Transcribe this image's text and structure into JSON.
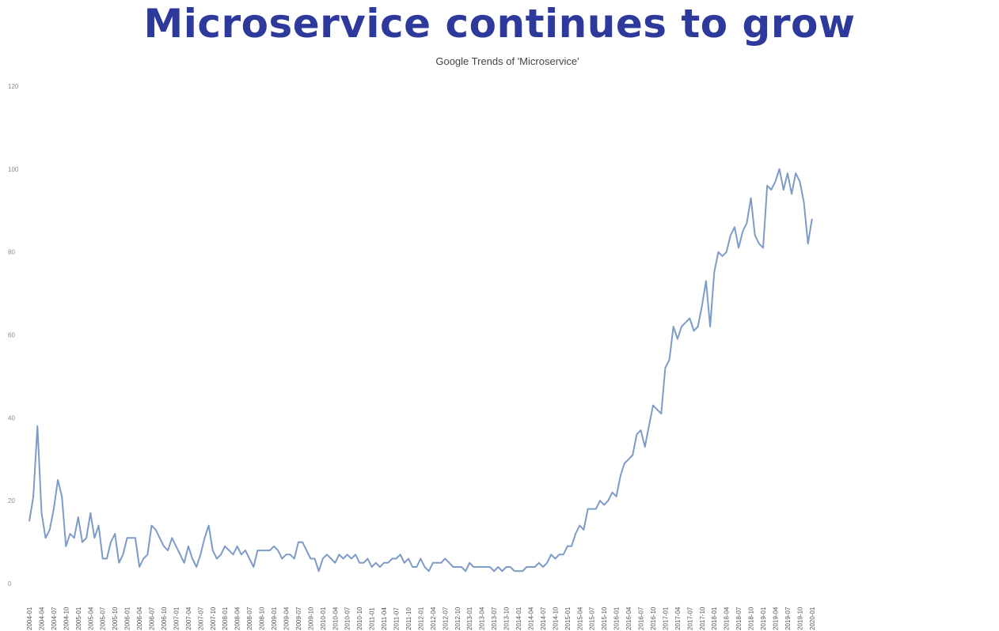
{
  "slide": {
    "title": "Microservice continues to grow"
  },
  "chart_data": {
    "type": "line",
    "title": "Google Trends of 'Microservice'",
    "xlabel": "",
    "ylabel": "",
    "ylim": [
      0,
      120
    ],
    "yticks": [
      0,
      20,
      40,
      60,
      80,
      100,
      120
    ],
    "grid": false,
    "legend": "none",
    "line_color": "#7d9bc7",
    "x_start": "2004-01",
    "x_tick_labels": [
      "2004-01",
      "2004-04",
      "2004-07",
      "2004-10",
      "2005-01",
      "2005-04",
      "2005-07",
      "2005-10",
      "2006-01",
      "2006-04",
      "2006-07",
      "2006-10",
      "2007-01",
      "2007-04",
      "2007-07",
      "2007-10",
      "2008-01",
      "2008-04",
      "2008-07",
      "2008-10",
      "2009-01",
      "2009-04",
      "2009-07",
      "2009-10",
      "2010-01",
      "2010-04",
      "2010-07",
      "2010-10",
      "2011-01",
      "2011-04",
      "2011-07",
      "2011-10",
      "2012-01",
      "2012-04",
      "2012-07",
      "2012-10",
      "2013-01",
      "2013-04",
      "2013-07",
      "2013-10",
      "2014-01",
      "2014-04",
      "2014-07",
      "2014-10",
      "2015-01",
      "2015-04",
      "2015-07",
      "2015-10",
      "2016-01",
      "2016-04",
      "2016-07",
      "2016-10",
      "2017-01",
      "2017-04",
      "2017-07",
      "2017-10",
      "2018-01",
      "2018-04",
      "2018-07",
      "2018-10",
      "2019-01",
      "2019-04",
      "2019-07",
      "2019-10",
      "2020-01"
    ],
    "series": [
      {
        "name": "",
        "values": [
          15,
          21,
          38,
          17,
          11,
          13,
          18,
          25,
          21,
          9,
          12,
          11,
          16,
          10,
          11,
          17,
          11,
          14,
          6,
          6,
          10,
          12,
          5,
          7,
          11,
          11,
          11,
          4,
          6,
          7,
          14,
          13,
          11,
          9,
          8,
          11,
          9,
          7,
          5,
          9,
          6,
          4,
          7,
          11,
          14,
          8,
          6,
          7,
          9,
          8,
          7,
          9,
          7,
          8,
          6,
          4,
          8,
          8,
          8,
          8,
          9,
          8,
          6,
          7,
          7,
          6,
          10,
          10,
          8,
          6,
          6,
          3,
          6,
          7,
          6,
          5,
          7,
          6,
          7,
          6,
          7,
          5,
          5,
          6,
          4,
          5,
          4,
          5,
          5,
          6,
          6,
          7,
          5,
          6,
          4,
          4,
          6,
          4,
          3,
          5,
          5,
          5,
          6,
          5,
          4,
          4,
          4,
          3,
          5,
          4,
          4,
          4,
          4,
          4,
          3,
          4,
          3,
          4,
          4,
          3,
          3,
          3,
          4,
          4,
          4,
          5,
          4,
          5,
          7,
          6,
          7,
          7,
          9,
          9,
          12,
          14,
          13,
          18,
          18,
          18,
          20,
          19,
          20,
          22,
          21,
          26,
          29,
          30,
          31,
          36,
          37,
          33,
          38,
          43,
          42,
          41,
          52,
          54,
          62,
          59,
          62,
          63,
          64,
          61,
          62,
          67,
          73,
          62,
          75,
          80,
          79,
          80,
          84,
          86,
          81,
          85,
          87,
          93,
          84,
          82,
          81,
          96,
          95,
          97,
          100,
          95,
          99,
          94,
          99,
          97,
          92,
          82,
          88
        ]
      }
    ]
  }
}
